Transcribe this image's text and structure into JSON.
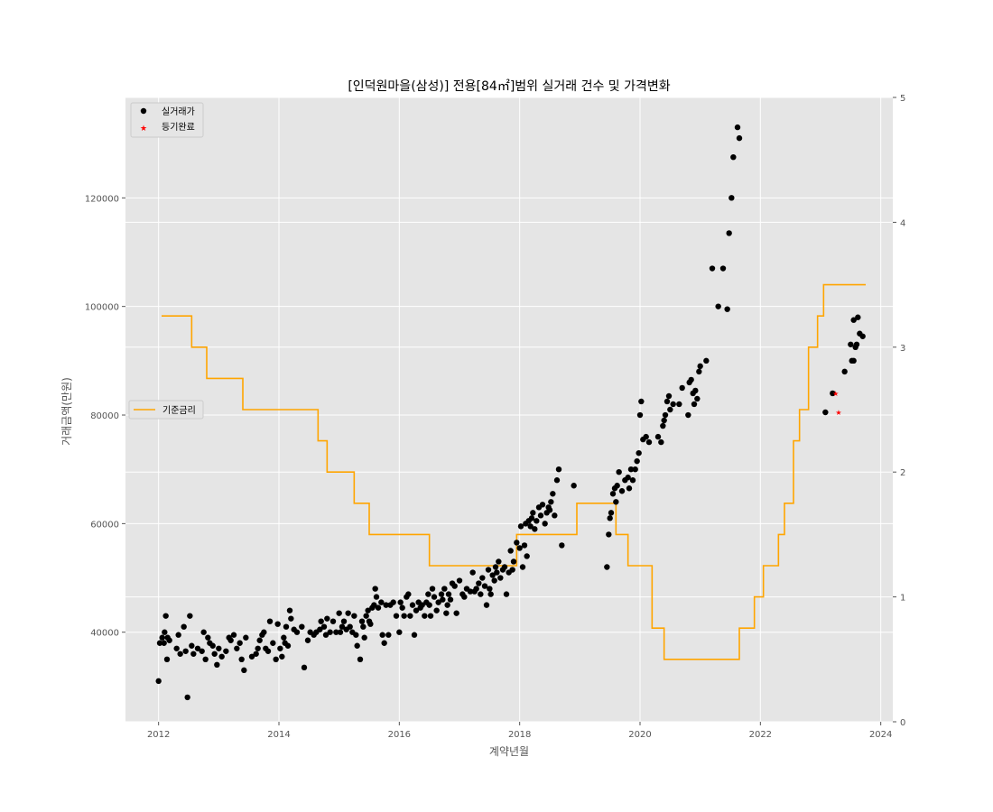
{
  "chart_data": {
    "type": "scatter",
    "title": "[인덕원마을(삼성)] 전용[84㎡]범위 실거래 건수 및 가격변화",
    "xlabel": "계약년월",
    "ylabel": "거래금액(만원)",
    "xlim": [
      2011.45,
      2024.2
    ],
    "ylim": [
      23500,
      138500
    ],
    "y2lim": [
      0,
      5
    ],
    "x_ticks": [
      "2012",
      "2014",
      "2016",
      "2018",
      "2020",
      "2022",
      "2024"
    ],
    "y_ticks": [
      "40000",
      "60000",
      "80000",
      "100000",
      "120000"
    ],
    "y2_ticks": [
      "0",
      "1",
      "2",
      "3",
      "4",
      "5"
    ],
    "grid": true,
    "legend_scatter_position": "upper-left",
    "legend_rate_position": "center-left",
    "series": [
      {
        "name": "실거래가",
        "kind": "scatter",
        "marker": "circle",
        "color": "#000000",
        "points": [
          [
            2012.0,
            31000
          ],
          [
            2012.02,
            38000
          ],
          [
            2012.06,
            39000
          ],
          [
            2012.09,
            38000
          ],
          [
            2012.1,
            40000
          ],
          [
            2012.12,
            43000
          ],
          [
            2012.14,
            35000
          ],
          [
            2012.15,
            39000
          ],
          [
            2012.18,
            38500
          ],
          [
            2012.3,
            37000
          ],
          [
            2012.33,
            39500
          ],
          [
            2012.36,
            36000
          ],
          [
            2012.42,
            41000
          ],
          [
            2012.45,
            36500
          ],
          [
            2012.48,
            28000
          ],
          [
            2012.52,
            43000
          ],
          [
            2012.55,
            37500
          ],
          [
            2012.58,
            36000
          ],
          [
            2012.65,
            37000
          ],
          [
            2012.72,
            36500
          ],
          [
            2012.75,
            40000
          ],
          [
            2012.78,
            35000
          ],
          [
            2012.82,
            39000
          ],
          [
            2012.85,
            38000
          ],
          [
            2012.9,
            37500
          ],
          [
            2012.93,
            36000
          ],
          [
            2012.97,
            34000
          ],
          [
            2013.0,
            37000
          ],
          [
            2013.05,
            35500
          ],
          [
            2013.12,
            36500
          ],
          [
            2013.17,
            39000
          ],
          [
            2013.2,
            38500
          ],
          [
            2013.25,
            39500
          ],
          [
            2013.3,
            37000
          ],
          [
            2013.35,
            38000
          ],
          [
            2013.38,
            35000
          ],
          [
            2013.42,
            33000
          ],
          [
            2013.45,
            39000
          ],
          [
            2013.55,
            35500
          ],
          [
            2013.62,
            36000
          ],
          [
            2013.65,
            37000
          ],
          [
            2013.68,
            38500
          ],
          [
            2013.72,
            39500
          ],
          [
            2013.75,
            40000
          ],
          [
            2013.78,
            37000
          ],
          [
            2013.82,
            36500
          ],
          [
            2013.85,
            42000
          ],
          [
            2013.9,
            38000
          ],
          [
            2013.95,
            35000
          ],
          [
            2013.98,
            41500
          ],
          [
            2014.02,
            37000
          ],
          [
            2014.05,
            35500
          ],
          [
            2014.08,
            39000
          ],
          [
            2014.1,
            38000
          ],
          [
            2014.12,
            41000
          ],
          [
            2014.15,
            37500
          ],
          [
            2014.18,
            44000
          ],
          [
            2014.2,
            42500
          ],
          [
            2014.25,
            40500
          ],
          [
            2014.3,
            40000
          ],
          [
            2014.38,
            41000
          ],
          [
            2014.42,
            33500
          ],
          [
            2014.48,
            38500
          ],
          [
            2014.52,
            40000
          ],
          [
            2014.58,
            39500
          ],
          [
            2014.62,
            40000
          ],
          [
            2014.68,
            40500
          ],
          [
            2014.7,
            42000
          ],
          [
            2014.75,
            41000
          ],
          [
            2014.78,
            39500
          ],
          [
            2014.8,
            42500
          ],
          [
            2014.85,
            40000
          ],
          [
            2014.9,
            42000
          ],
          [
            2014.95,
            40000
          ],
          [
            2015.0,
            43500
          ],
          [
            2015.02,
            40000
          ],
          [
            2015.05,
            41000
          ],
          [
            2015.08,
            42000
          ],
          [
            2015.12,
            40500
          ],
          [
            2015.15,
            43500
          ],
          [
            2015.18,
            41000
          ],
          [
            2015.22,
            40000
          ],
          [
            2015.25,
            43000
          ],
          [
            2015.28,
            39500
          ],
          [
            2015.3,
            37500
          ],
          [
            2015.35,
            35000
          ],
          [
            2015.38,
            42000
          ],
          [
            2015.4,
            41000
          ],
          [
            2015.42,
            39000
          ],
          [
            2015.45,
            43000
          ],
          [
            2015.48,
            44000
          ],
          [
            2015.5,
            42000
          ],
          [
            2015.52,
            41500
          ],
          [
            2015.55,
            44500
          ],
          [
            2015.58,
            45000
          ],
          [
            2015.6,
            48000
          ],
          [
            2015.62,
            46500
          ],
          [
            2015.65,
            44500
          ],
          [
            2015.7,
            45500
          ],
          [
            2015.72,
            39500
          ],
          [
            2015.75,
            38000
          ],
          [
            2015.78,
            45000
          ],
          [
            2015.82,
            39500
          ],
          [
            2015.85,
            45000
          ],
          [
            2015.9,
            45500
          ],
          [
            2015.95,
            43000
          ],
          [
            2016.0,
            40000
          ],
          [
            2016.02,
            45500
          ],
          [
            2016.05,
            44500
          ],
          [
            2016.08,
            43000
          ],
          [
            2016.12,
            46500
          ],
          [
            2016.15,
            47000
          ],
          [
            2016.18,
            43000
          ],
          [
            2016.22,
            45000
          ],
          [
            2016.25,
            39500
          ],
          [
            2016.28,
            44000
          ],
          [
            2016.32,
            45500
          ],
          [
            2016.35,
            44500
          ],
          [
            2016.38,
            45000
          ],
          [
            2016.42,
            43000
          ],
          [
            2016.45,
            45500
          ],
          [
            2016.48,
            47000
          ],
          [
            2016.5,
            45000
          ],
          [
            2016.52,
            43000
          ],
          [
            2016.55,
            48000
          ],
          [
            2016.58,
            46500
          ],
          [
            2016.62,
            44000
          ],
          [
            2016.65,
            45500
          ],
          [
            2016.7,
            47000
          ],
          [
            2016.72,
            46000
          ],
          [
            2016.75,
            48000
          ],
          [
            2016.78,
            43500
          ],
          [
            2016.8,
            45000
          ],
          [
            2016.82,
            47000
          ],
          [
            2016.85,
            46000
          ],
          [
            2016.88,
            49000
          ],
          [
            2016.92,
            48500
          ],
          [
            2016.95,
            43500
          ],
          [
            2017.0,
            49500
          ],
          [
            2017.05,
            47000
          ],
          [
            2017.08,
            46500
          ],
          [
            2017.12,
            48000
          ],
          [
            2017.18,
            47500
          ],
          [
            2017.22,
            51000
          ],
          [
            2017.25,
            47500
          ],
          [
            2017.28,
            48000
          ],
          [
            2017.32,
            49000
          ],
          [
            2017.35,
            47000
          ],
          [
            2017.38,
            50000
          ],
          [
            2017.42,
            48500
          ],
          [
            2017.45,
            45000
          ],
          [
            2017.48,
            51500
          ],
          [
            2017.5,
            48000
          ],
          [
            2017.52,
            47000
          ],
          [
            2017.55,
            50500
          ],
          [
            2017.58,
            49500
          ],
          [
            2017.6,
            52000
          ],
          [
            2017.62,
            51000
          ],
          [
            2017.65,
            53000
          ],
          [
            2017.68,
            50000
          ],
          [
            2017.72,
            51500
          ],
          [
            2017.75,
            52000
          ],
          [
            2017.78,
            47000
          ],
          [
            2017.82,
            51000
          ],
          [
            2017.85,
            55000
          ],
          [
            2017.88,
            51500
          ],
          [
            2017.9,
            53000
          ],
          [
            2017.95,
            56500
          ],
          [
            2018.0,
            55500
          ],
          [
            2018.02,
            59500
          ],
          [
            2018.05,
            52000
          ],
          [
            2018.08,
            56000
          ],
          [
            2018.1,
            60000
          ],
          [
            2018.12,
            54000
          ],
          [
            2018.15,
            60500
          ],
          [
            2018.18,
            59500
          ],
          [
            2018.2,
            61000
          ],
          [
            2018.22,
            62000
          ],
          [
            2018.25,
            59000
          ],
          [
            2018.28,
            60500
          ],
          [
            2018.32,
            63000
          ],
          [
            2018.35,
            61500
          ],
          [
            2018.38,
            63500
          ],
          [
            2018.42,
            60000
          ],
          [
            2018.45,
            62000
          ],
          [
            2018.48,
            63000
          ],
          [
            2018.5,
            62500
          ],
          [
            2018.52,
            64000
          ],
          [
            2018.55,
            65500
          ],
          [
            2018.58,
            61500
          ],
          [
            2018.62,
            68000
          ],
          [
            2018.65,
            70000
          ],
          [
            2018.7,
            56000
          ],
          [
            2018.9,
            67000
          ],
          [
            2019.45,
            52000
          ],
          [
            2019.48,
            58000
          ],
          [
            2019.5,
            61000
          ],
          [
            2019.52,
            62000
          ],
          [
            2019.55,
            65500
          ],
          [
            2019.58,
            66500
          ],
          [
            2019.6,
            64000
          ],
          [
            2019.62,
            67000
          ],
          [
            2019.65,
            69500
          ],
          [
            2019.7,
            66000
          ],
          [
            2019.75,
            68000
          ],
          [
            2019.8,
            68500
          ],
          [
            2019.82,
            66500
          ],
          [
            2019.85,
            70000
          ],
          [
            2019.88,
            68000
          ],
          [
            2019.92,
            70000
          ],
          [
            2019.95,
            71500
          ],
          [
            2019.98,
            73000
          ],
          [
            2020.0,
            80000
          ],
          [
            2020.02,
            82500
          ],
          [
            2020.05,
            75500
          ],
          [
            2020.1,
            76000
          ],
          [
            2020.15,
            75000
          ],
          [
            2020.3,
            76000
          ],
          [
            2020.35,
            75000
          ],
          [
            2020.38,
            78000
          ],
          [
            2020.4,
            79000
          ],
          [
            2020.42,
            80000
          ],
          [
            2020.45,
            82500
          ],
          [
            2020.48,
            83500
          ],
          [
            2020.5,
            81000
          ],
          [
            2020.55,
            82000
          ],
          [
            2020.65,
            82000
          ],
          [
            2020.7,
            85000
          ],
          [
            2020.8,
            80000
          ],
          [
            2020.82,
            86000
          ],
          [
            2020.85,
            86500
          ],
          [
            2020.88,
            84000
          ],
          [
            2020.9,
            82000
          ],
          [
            2020.92,
            84500
          ],
          [
            2020.95,
            83000
          ],
          [
            2020.98,
            88000
          ],
          [
            2021.0,
            89000
          ],
          [
            2021.1,
            90000
          ],
          [
            2021.2,
            107000
          ],
          [
            2021.3,
            100000
          ],
          [
            2021.38,
            107000
          ],
          [
            2021.45,
            99500
          ],
          [
            2021.48,
            113500
          ],
          [
            2021.52,
            120000
          ],
          [
            2021.55,
            127500
          ],
          [
            2021.62,
            133000
          ],
          [
            2021.65,
            131000
          ],
          [
            2023.08,
            80500
          ],
          [
            2023.2,
            84000
          ],
          [
            2023.4,
            88000
          ],
          [
            2023.5,
            93000
          ],
          [
            2023.52,
            90000
          ],
          [
            2023.55,
            97500
          ],
          [
            2023.58,
            92500
          ],
          [
            2023.6,
            93000
          ],
          [
            2023.62,
            98000
          ],
          [
            2023.65,
            95000
          ],
          [
            2023.7,
            94500
          ],
          [
            2023.55,
            90000
          ]
        ]
      },
      {
        "name": "등기완료",
        "kind": "scatter",
        "marker": "star",
        "color": "#ff0000",
        "points": [
          [
            2023.25,
            84000
          ],
          [
            2023.3,
            80500
          ]
        ]
      },
      {
        "name": "기준금리",
        "kind": "step",
        "axis": "right",
        "color": "#ffa500",
        "steps": [
          [
            2012.05,
            3.25
          ],
          [
            2012.55,
            3.0
          ],
          [
            2012.8,
            2.75
          ],
          [
            2013.4,
            2.5
          ],
          [
            2014.65,
            2.25
          ],
          [
            2014.8,
            2.0
          ],
          [
            2015.25,
            1.75
          ],
          [
            2015.5,
            1.5
          ],
          [
            2016.5,
            1.25
          ],
          [
            2017.95,
            1.5
          ],
          [
            2018.95,
            1.75
          ],
          [
            2019.6,
            1.5
          ],
          [
            2019.8,
            1.25
          ],
          [
            2020.2,
            0.75
          ],
          [
            2020.4,
            0.5
          ],
          [
            2021.65,
            0.75
          ],
          [
            2021.9,
            1.0
          ],
          [
            2022.05,
            1.25
          ],
          [
            2022.3,
            1.5
          ],
          [
            2022.4,
            1.75
          ],
          [
            2022.55,
            2.25
          ],
          [
            2022.65,
            2.5
          ],
          [
            2022.8,
            3.0
          ],
          [
            2022.95,
            3.25
          ],
          [
            2023.05,
            3.5
          ],
          [
            2023.75,
            3.5
          ]
        ]
      }
    ]
  }
}
